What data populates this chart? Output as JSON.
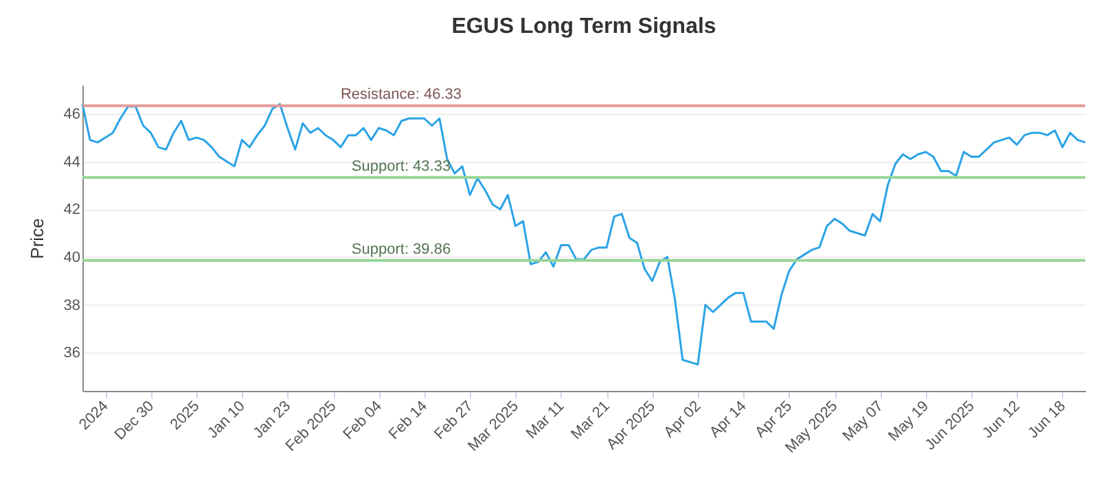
{
  "chart_data": {
    "type": "line",
    "title": "EGUS Long Term Signals",
    "ylabel": "Price",
    "categories": [
      null,
      null,
      null,
      "2024",
      null,
      null,
      null,
      null,
      null,
      "Dec 30",
      null,
      null,
      null,
      null,
      null,
      "2025",
      null,
      null,
      null,
      null,
      null,
      "Jan 10",
      null,
      null,
      null,
      null,
      null,
      "Jan 23",
      null,
      null,
      null,
      null,
      null,
      "Feb 2025",
      null,
      null,
      null,
      null,
      null,
      "Feb 04",
      null,
      null,
      null,
      null,
      null,
      "Feb 14",
      null,
      null,
      null,
      null,
      null,
      "Feb 27",
      null,
      null,
      null,
      null,
      null,
      "Mar 2025",
      null,
      null,
      null,
      null,
      null,
      "Mar 11",
      null,
      null,
      null,
      null,
      null,
      "Mar 21",
      null,
      null,
      null,
      null,
      null,
      "Apr 2025",
      null,
      null,
      null,
      null,
      null,
      "Apr 02",
      null,
      null,
      null,
      null,
      null,
      "Apr 14",
      null,
      null,
      null,
      null,
      null,
      "Apr 25",
      null,
      null,
      null,
      null,
      null,
      "May 2025",
      null,
      null,
      null,
      null,
      null,
      "May 07",
      null,
      null,
      null,
      null,
      null,
      "May 19",
      null,
      null,
      null,
      null,
      null,
      "Jun 2025",
      null,
      null,
      null,
      null,
      null,
      "Jun 12",
      null,
      null,
      null,
      null,
      null,
      "Jun 18",
      null,
      null,
      null
    ],
    "series": [
      {
        "color": "#2ba3e6",
        "values": [
          46.4,
          44.9,
          44.8,
          45.0,
          45.2,
          45.8,
          46.3,
          46.3,
          45.5,
          45.2,
          44.6,
          44.5,
          45.2,
          45.7,
          44.9,
          45.0,
          44.9,
          44.6,
          44.2,
          44.0,
          43.8,
          44.9,
          44.6,
          45.1,
          45.5,
          46.2,
          46.4,
          45.4,
          44.5,
          45.6,
          45.2,
          45.4,
          45.1,
          44.9,
          44.6,
          45.1,
          45.1,
          45.4,
          44.9,
          45.4,
          45.3,
          45.1,
          45.7,
          45.8,
          45.8,
          45.8,
          45.5,
          45.8,
          44.1,
          43.5,
          43.8,
          42.6,
          43.3,
          42.8,
          42.2,
          42.0,
          42.6,
          41.3,
          41.5,
          39.7,
          39.8,
          40.2,
          39.6,
          40.5,
          40.5,
          39.9,
          39.9,
          40.3,
          40.4,
          40.4,
          41.7,
          41.8,
          40.8,
          40.6,
          39.5,
          39.0,
          39.8,
          40.0,
          38.2,
          35.7,
          35.6,
          35.5,
          38.0,
          37.7,
          38.0,
          38.3,
          38.5,
          38.5,
          37.3,
          37.3,
          37.3,
          37.0,
          38.4,
          39.4,
          39.9,
          40.1,
          40.3,
          40.4,
          41.3,
          41.6,
          41.4,
          41.1,
          41.0,
          40.9,
          41.8,
          41.5,
          43.0,
          43.9,
          44.3,
          44.1,
          44.3,
          44.4,
          44.2,
          43.6,
          43.6,
          43.4,
          44.4,
          44.2,
          44.2,
          44.5,
          44.8,
          44.9,
          45.0,
          44.7,
          45.1,
          45.2,
          45.2,
          45.1,
          45.3,
          44.6,
          45.2,
          44.9,
          44.8
        ]
      }
    ],
    "ylim": [
      34.4,
      47.2
    ],
    "yticks": [
      36,
      38,
      40,
      42,
      44,
      46
    ],
    "grid": "y",
    "ref_lines": [
      {
        "axis": "y",
        "value": 46.33,
        "label": "Resistance: 46.33",
        "color": "#e39a9a"
      },
      {
        "axis": "y",
        "value": 43.33,
        "label": "Support: 43.33",
        "color": "#96d596"
      },
      {
        "axis": "y",
        "value": 39.86,
        "label": "Support: 39.86",
        "color": "#96d596"
      }
    ]
  }
}
